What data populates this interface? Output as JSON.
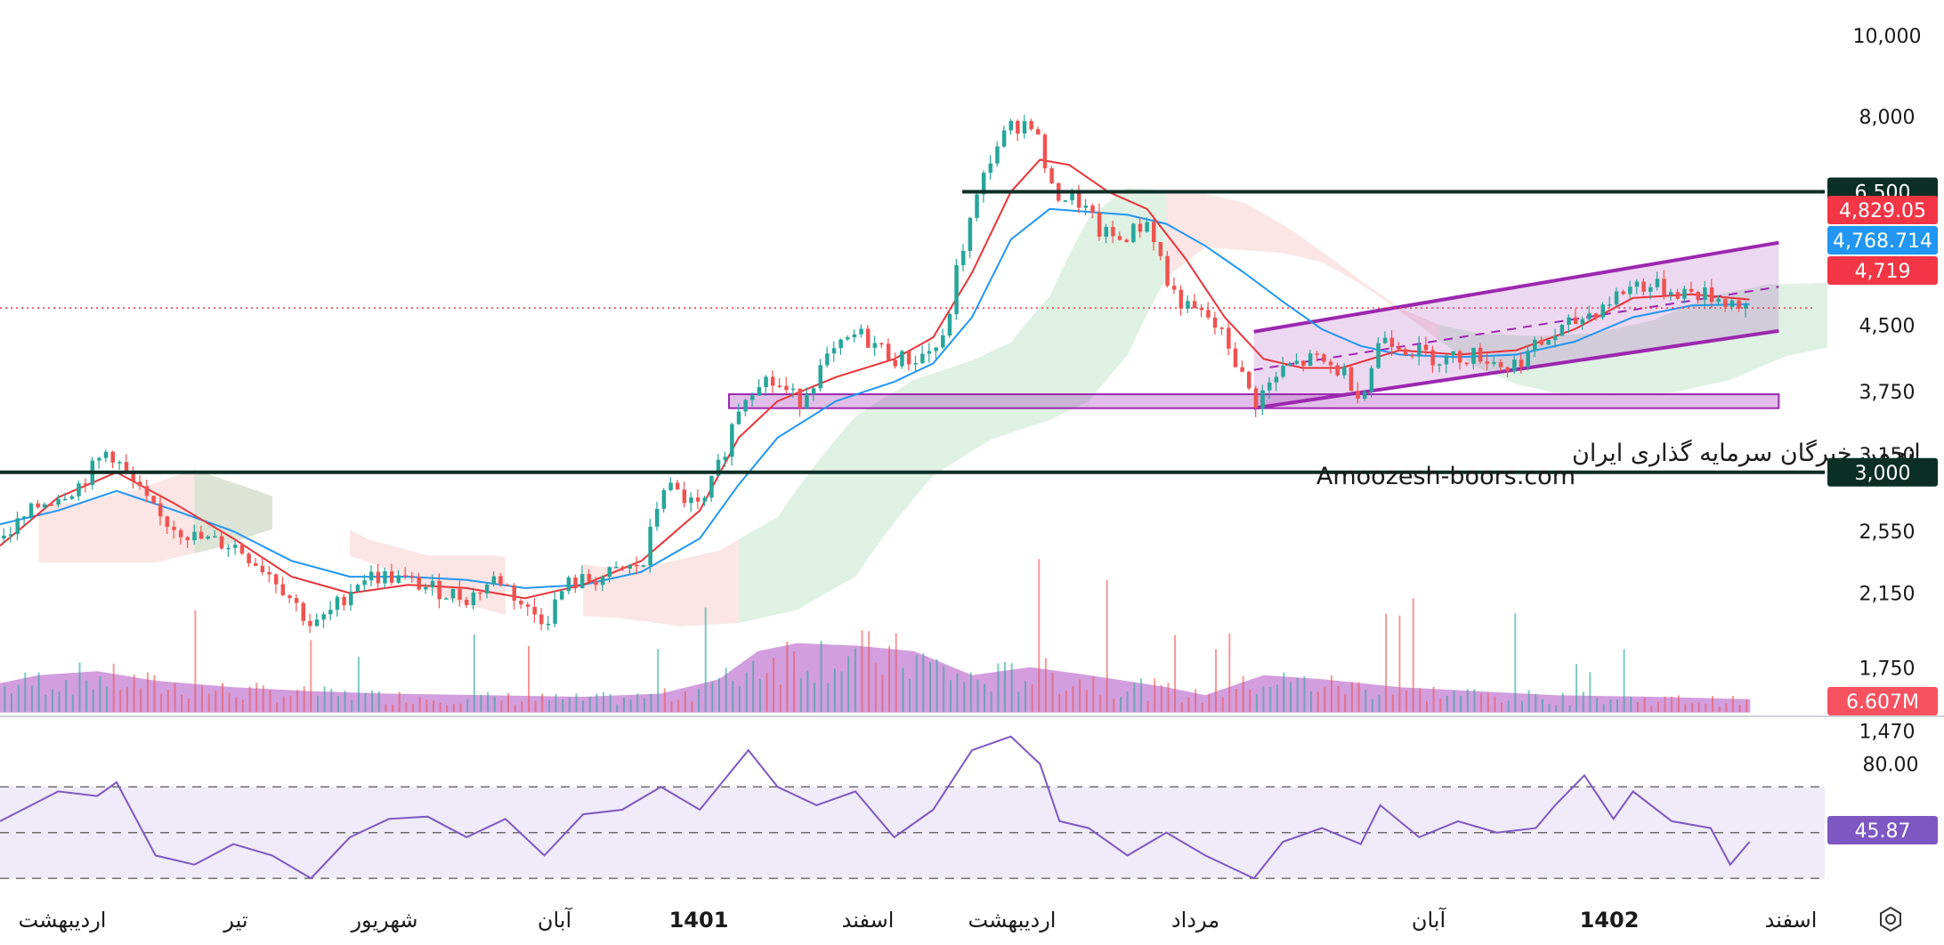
{
  "watermark": {
    "line1": "انجمن خبرگان سرمایه گذاری ایران",
    "line2": "Amoozesh-boors.com"
  },
  "colors": {
    "up": "#26a69a",
    "down": "#ef5350",
    "ma_fast": "#e8333a",
    "ma_slow": "#2196f3",
    "channel": "#9c27b0",
    "rsi_line": "#7e57c2",
    "hline": "#0b2e25",
    "last_price": "#f23645",
    "volume_ma": "#b04fc4",
    "cloud_green": "#b7e0c0",
    "cloud_red": "#f7c6c6"
  },
  "toolbar": {
    "settings_icon": "gear-icon"
  },
  "chart_data": {
    "type": "candlestick",
    "price_axis": {
      "scale": "log",
      "ylim": [
        1550,
        10500
      ],
      "ticks": [
        "10,000",
        "8,000",
        "4,500",
        "3,750",
        "3,150",
        "2,550",
        "2,150",
        "1,750",
        "1,470"
      ]
    },
    "time_axis": {
      "labels": [
        "اردیبهشت",
        "تیر",
        "شهریور",
        "آبان",
        "1401",
        "اسفند",
        "اردیبهشت",
        "مرداد",
        "آبان",
        "1402",
        "اسفند"
      ],
      "bold": [
        "1401",
        "1402"
      ]
    },
    "horizontal_levels": [
      {
        "label": "6,500",
        "value": 6500
      },
      {
        "label": "3,000",
        "value": 3000
      }
    ],
    "price_badges": [
      {
        "label": "4,829.05",
        "value": 4829.05,
        "color": "#f23645"
      },
      {
        "label": "4,768.714",
        "value": 4768.714,
        "color": "#2196f3"
      },
      {
        "label": "4,719",
        "value": 4719,
        "color": "#f23645"
      }
    ],
    "volume_badge": "6.607M",
    "support_zone": {
      "low": 3580,
      "high": 3720
    },
    "channel": {
      "upper": [
        [
          0.645,
          4420
        ],
        [
          0.915,
          5650
        ]
      ],
      "lower": [
        [
          0.645,
          3580
        ],
        [
          0.915,
          4430
        ]
      ]
    },
    "price_path": [
      [
        0.0,
        2500
      ],
      [
        0.02,
        2750
      ],
      [
        0.04,
        2900
      ],
      [
        0.055,
        3200
      ],
      [
        0.065,
        2950
      ],
      [
        0.08,
        2650
      ],
      [
        0.1,
        2500
      ],
      [
        0.12,
        2450
      ],
      [
        0.14,
        2250
      ],
      [
        0.16,
        1950
      ],
      [
        0.17,
        2050
      ],
      [
        0.185,
        2250
      ],
      [
        0.2,
        2250
      ],
      [
        0.22,
        2180
      ],
      [
        0.24,
        2120
      ],
      [
        0.255,
        2250
      ],
      [
        0.27,
        2050
      ],
      [
        0.28,
        2000
      ],
      [
        0.29,
        2200
      ],
      [
        0.31,
        2250
      ],
      [
        0.33,
        2330
      ],
      [
        0.34,
        2900
      ],
      [
        0.36,
        2700
      ],
      [
        0.37,
        3100
      ],
      [
        0.38,
        3650
      ],
      [
        0.39,
        3900
      ],
      [
        0.4,
        3800
      ],
      [
        0.41,
        3650
      ],
      [
        0.425,
        4100
      ],
      [
        0.44,
        4400
      ],
      [
        0.46,
        4100
      ],
      [
        0.47,
        4100
      ],
      [
        0.485,
        4300
      ],
      [
        0.49,
        5100
      ],
      [
        0.5,
        6200
      ],
      [
        0.51,
        7300
      ],
      [
        0.52,
        7800
      ],
      [
        0.53,
        7900
      ],
      [
        0.54,
        6500
      ],
      [
        0.555,
        6300
      ],
      [
        0.565,
        5800
      ],
      [
        0.575,
        5700
      ],
      [
        0.59,
        6000
      ],
      [
        0.6,
        5000
      ],
      [
        0.61,
        4700
      ],
      [
        0.62,
        4600
      ],
      [
        0.63,
        4300
      ],
      [
        0.64,
        3800
      ],
      [
        0.645,
        3650
      ],
      [
        0.66,
        4000
      ],
      [
        0.675,
        4100
      ],
      [
        0.69,
        3950
      ],
      [
        0.7,
        3700
      ],
      [
        0.71,
        4400
      ],
      [
        0.725,
        4200
      ],
      [
        0.74,
        4100
      ],
      [
        0.76,
        4150
      ],
      [
        0.775,
        4000
      ],
      [
        0.79,
        4250
      ],
      [
        0.8,
        4400
      ],
      [
        0.82,
        4700
      ],
      [
        0.84,
        5050
      ],
      [
        0.86,
        4950
      ],
      [
        0.875,
        4900
      ],
      [
        0.89,
        4800
      ],
      [
        0.9,
        4719
      ]
    ],
    "ma_fast": [
      [
        0.0,
        2450
      ],
      [
        0.03,
        2800
      ],
      [
        0.06,
        3000
      ],
      [
        0.09,
        2750
      ],
      [
        0.12,
        2500
      ],
      [
        0.15,
        2250
      ],
      [
        0.18,
        2150
      ],
      [
        0.21,
        2200
      ],
      [
        0.24,
        2180
      ],
      [
        0.27,
        2120
      ],
      [
        0.3,
        2200
      ],
      [
        0.33,
        2350
      ],
      [
        0.36,
        2700
      ],
      [
        0.38,
        3300
      ],
      [
        0.4,
        3650
      ],
      [
        0.43,
        3900
      ],
      [
        0.46,
        4100
      ],
      [
        0.48,
        4350
      ],
      [
        0.5,
        5200
      ],
      [
        0.52,
        6500
      ],
      [
        0.535,
        7100
      ],
      [
        0.55,
        7000
      ],
      [
        0.57,
        6500
      ],
      [
        0.59,
        6200
      ],
      [
        0.61,
        5400
      ],
      [
        0.63,
        4600
      ],
      [
        0.65,
        4100
      ],
      [
        0.67,
        4000
      ],
      [
        0.69,
        4000
      ],
      [
        0.72,
        4200
      ],
      [
        0.75,
        4150
      ],
      [
        0.78,
        4200
      ],
      [
        0.81,
        4450
      ],
      [
        0.84,
        4850
      ],
      [
        0.87,
        4900
      ],
      [
        0.9,
        4830
      ]
    ],
    "ma_slow": [
      [
        0.0,
        2600
      ],
      [
        0.03,
        2700
      ],
      [
        0.06,
        2850
      ],
      [
        0.09,
        2700
      ],
      [
        0.12,
        2550
      ],
      [
        0.15,
        2350
      ],
      [
        0.18,
        2250
      ],
      [
        0.21,
        2250
      ],
      [
        0.24,
        2230
      ],
      [
        0.27,
        2180
      ],
      [
        0.3,
        2200
      ],
      [
        0.33,
        2280
      ],
      [
        0.36,
        2500
      ],
      [
        0.38,
        2900
      ],
      [
        0.4,
        3300
      ],
      [
        0.43,
        3650
      ],
      [
        0.46,
        3850
      ],
      [
        0.48,
        4050
      ],
      [
        0.5,
        4600
      ],
      [
        0.52,
        5700
      ],
      [
        0.54,
        6200
      ],
      [
        0.56,
        6150
      ],
      [
        0.58,
        6100
      ],
      [
        0.6,
        5950
      ],
      [
        0.62,
        5600
      ],
      [
        0.64,
        5200
      ],
      [
        0.66,
        4800
      ],
      [
        0.68,
        4450
      ],
      [
        0.7,
        4250
      ],
      [
        0.72,
        4150
      ],
      [
        0.75,
        4120
      ],
      [
        0.78,
        4150
      ],
      [
        0.81,
        4300
      ],
      [
        0.84,
        4600
      ],
      [
        0.87,
        4750
      ],
      [
        0.9,
        4769
      ]
    ],
    "volume_ma": [
      [
        0.0,
        0.35
      ],
      [
        0.02,
        0.45
      ],
      [
        0.05,
        0.5
      ],
      [
        0.08,
        0.38
      ],
      [
        0.12,
        0.3
      ],
      [
        0.16,
        0.25
      ],
      [
        0.2,
        0.22
      ],
      [
        0.25,
        0.2
      ],
      [
        0.3,
        0.18
      ],
      [
        0.34,
        0.22
      ],
      [
        0.37,
        0.4
      ],
      [
        0.39,
        0.75
      ],
      [
        0.41,
        0.85
      ],
      [
        0.44,
        0.82
      ],
      [
        0.47,
        0.75
      ],
      [
        0.5,
        0.45
      ],
      [
        0.53,
        0.55
      ],
      [
        0.56,
        0.45
      ],
      [
        0.6,
        0.3
      ],
      [
        0.62,
        0.2
      ],
      [
        0.65,
        0.45
      ],
      [
        0.68,
        0.4
      ],
      [
        0.72,
        0.3
      ],
      [
        0.76,
        0.25
      ],
      [
        0.8,
        0.2
      ],
      [
        0.85,
        0.18
      ],
      [
        0.9,
        0.15
      ]
    ],
    "rsi": {
      "label": "45.87",
      "value": 45.87,
      "ticks": [
        "80.00"
      ],
      "bands": [
        30,
        50,
        70
      ],
      "ylim": [
        25,
        95
      ],
      "path": [
        [
          0.0,
          55
        ],
        [
          0.03,
          68
        ],
        [
          0.05,
          66
        ],
        [
          0.06,
          72
        ],
        [
          0.08,
          40
        ],
        [
          0.1,
          36
        ],
        [
          0.12,
          45
        ],
        [
          0.14,
          40
        ],
        [
          0.16,
          30
        ],
        [
          0.18,
          48
        ],
        [
          0.2,
          56
        ],
        [
          0.22,
          57
        ],
        [
          0.24,
          48
        ],
        [
          0.26,
          56
        ],
        [
          0.28,
          40
        ],
        [
          0.3,
          58
        ],
        [
          0.32,
          60
        ],
        [
          0.34,
          70
        ],
        [
          0.36,
          60
        ],
        [
          0.385,
          86
        ],
        [
          0.4,
          70
        ],
        [
          0.42,
          62
        ],
        [
          0.44,
          68
        ],
        [
          0.46,
          48
        ],
        [
          0.48,
          60
        ],
        [
          0.5,
          86
        ],
        [
          0.52,
          92
        ],
        [
          0.535,
          80
        ],
        [
          0.545,
          55
        ],
        [
          0.56,
          52
        ],
        [
          0.58,
          40
        ],
        [
          0.6,
          50
        ],
        [
          0.62,
          40
        ],
        [
          0.645,
          30
        ],
        [
          0.66,
          46
        ],
        [
          0.68,
          52
        ],
        [
          0.7,
          45
        ],
        [
          0.71,
          62
        ],
        [
          0.73,
          48
        ],
        [
          0.75,
          55
        ],
        [
          0.77,
          50
        ],
        [
          0.79,
          52
        ],
        [
          0.8,
          62
        ],
        [
          0.815,
          75
        ],
        [
          0.83,
          56
        ],
        [
          0.84,
          68
        ],
        [
          0.86,
          55
        ],
        [
          0.88,
          52
        ],
        [
          0.89,
          36
        ],
        [
          0.9,
          46
        ]
      ]
    }
  }
}
